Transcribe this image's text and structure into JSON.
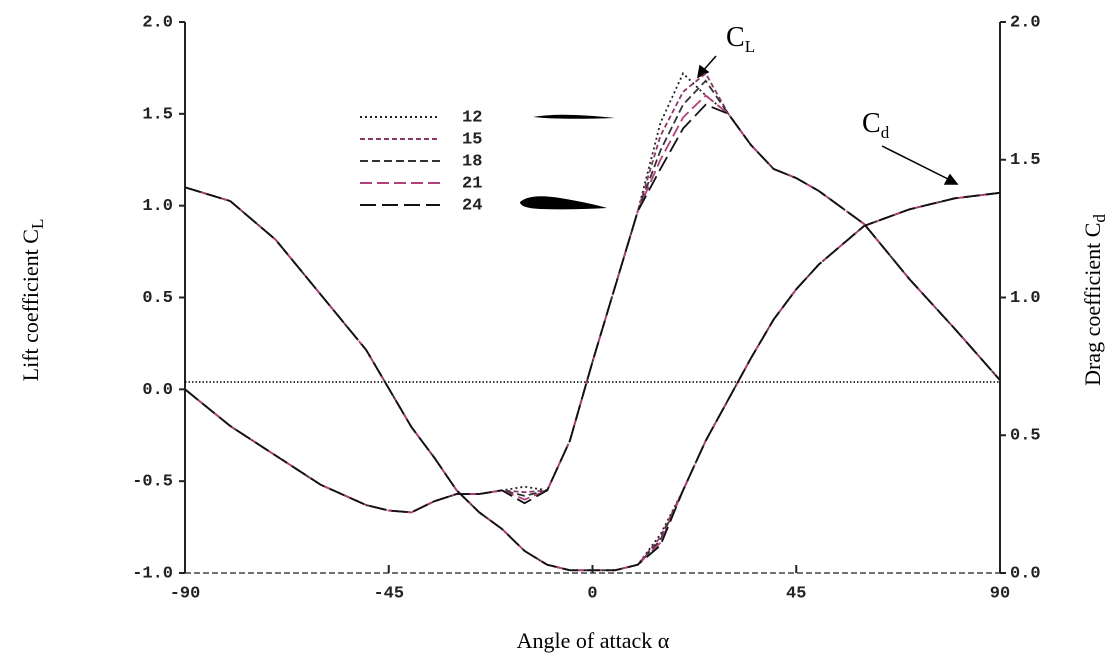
{
  "chart_data": {
    "type": "line",
    "xlabel": "Angle of attack α",
    "ylabel": "Lift coefficient C",
    "ylabel_sub": "L",
    "y2label": "Drag coefficient C",
    "y2label_sub": "d",
    "annotations": [
      {
        "text": "C",
        "sub": "L"
      },
      {
        "text": "C",
        "sub": "d"
      }
    ],
    "x": [
      -90,
      -80,
      -70,
      -60,
      -50,
      -45,
      -40,
      -35,
      -30,
      -25,
      -20,
      -15,
      -10,
      -5,
      0,
      5,
      10,
      15,
      20,
      25,
      30,
      35,
      40,
      45,
      50,
      60,
      70,
      80,
      90
    ],
    "xlim": [
      -90,
      90
    ],
    "xticks": [
      -90,
      -45,
      0,
      45,
      90
    ],
    "ylim": [
      -1,
      2
    ],
    "yticks": [
      {
        "value": -1,
        "label": "-1.0"
      },
      {
        "value": -0.5,
        "label": "-0.5"
      },
      {
        "value": 0,
        "label": "0.0"
      },
      {
        "value": 0.5,
        "label": "0.5"
      },
      {
        "value": 1,
        "label": "1.0"
      },
      {
        "value": 1.5,
        "label": "1.5"
      },
      {
        "value": 2,
        "label": "2.0"
      }
    ],
    "y2lim": [
      0,
      2
    ],
    "y2ticks": [
      {
        "value": 0,
        "label": "0.0"
      },
      {
        "value": 0.5,
        "label": "0.5"
      },
      {
        "value": 1,
        "label": "1.0"
      },
      {
        "value": 1.5,
        "label": "1.5"
      },
      {
        "value": 2,
        "label": "2.0"
      }
    ],
    "hline": 0.04,
    "series": [
      {
        "name": "12",
        "color": "#222222",
        "dash": "2,3",
        "values": [
          0,
          -0.2,
          -0.36,
          -0.52,
          -0.63,
          -0.66,
          -0.67,
          -0.61,
          -0.57,
          -0.57,
          -0.55,
          -0.53,
          -0.55,
          -0.28,
          0.15,
          0.56,
          0.97,
          1.45,
          1.72,
          1.6,
          1.5,
          1.33,
          1.2,
          1.15,
          1.08,
          0.9,
          0.6,
          0.33,
          0.05
        ],
        "cd_values": [
          1.4,
          1.35,
          1.21,
          1.01,
          0.81,
          0.67,
          0.53,
          0.42,
          0.3,
          0.22,
          0.16,
          0.08,
          0.03,
          0.01,
          0.01,
          0.01,
          0.03,
          0.14,
          0.3,
          0.48,
          0.63,
          0.78,
          0.92,
          1.03,
          1.12,
          1.26,
          1.32,
          1.36,
          1.38
        ]
      },
      {
        "name": "15",
        "color": "#8a3a6a",
        "dash": "5,3",
        "values": [
          0,
          -0.2,
          -0.36,
          -0.52,
          -0.63,
          -0.66,
          -0.67,
          -0.61,
          -0.57,
          -0.57,
          -0.55,
          -0.56,
          -0.55,
          -0.28,
          0.15,
          0.56,
          0.97,
          1.38,
          1.62,
          1.72,
          1.5,
          1.33,
          1.2,
          1.15,
          1.08,
          0.9,
          0.6,
          0.33,
          0.05
        ],
        "cd_values": [
          1.4,
          1.35,
          1.21,
          1.01,
          0.81,
          0.67,
          0.53,
          0.42,
          0.3,
          0.22,
          0.16,
          0.08,
          0.03,
          0.01,
          0.01,
          0.01,
          0.03,
          0.13,
          0.3,
          0.48,
          0.63,
          0.78,
          0.92,
          1.03,
          1.12,
          1.26,
          1.32,
          1.36,
          1.38
        ]
      },
      {
        "name": "18",
        "color": "#333333",
        "dash": "8,4",
        "values": [
          0,
          -0.2,
          -0.36,
          -0.52,
          -0.63,
          -0.66,
          -0.67,
          -0.61,
          -0.57,
          -0.57,
          -0.55,
          -0.58,
          -0.55,
          -0.28,
          0.15,
          0.56,
          0.97,
          1.3,
          1.55,
          1.68,
          1.5,
          1.33,
          1.2,
          1.15,
          1.08,
          0.9,
          0.6,
          0.33,
          0.05
        ],
        "cd_values": [
          1.4,
          1.35,
          1.21,
          1.01,
          0.81,
          0.67,
          0.53,
          0.42,
          0.3,
          0.22,
          0.16,
          0.08,
          0.03,
          0.01,
          0.01,
          0.01,
          0.03,
          0.12,
          0.3,
          0.48,
          0.63,
          0.78,
          0.92,
          1.03,
          1.12,
          1.26,
          1.32,
          1.36,
          1.38
        ]
      },
      {
        "name": "21",
        "color": "#b0407a",
        "dash": "12,5",
        "values": [
          0,
          -0.2,
          -0.36,
          -0.52,
          -0.63,
          -0.66,
          -0.67,
          -0.61,
          -0.57,
          -0.57,
          -0.55,
          -0.6,
          -0.55,
          -0.28,
          0.15,
          0.56,
          0.97,
          1.25,
          1.48,
          1.6,
          1.5,
          1.33,
          1.2,
          1.15,
          1.08,
          0.9,
          0.6,
          0.33,
          0.05
        ],
        "cd_values": [
          1.4,
          1.35,
          1.21,
          1.01,
          0.81,
          0.67,
          0.53,
          0.42,
          0.3,
          0.22,
          0.16,
          0.08,
          0.03,
          0.01,
          0.01,
          0.01,
          0.03,
          0.11,
          0.3,
          0.48,
          0.63,
          0.78,
          0.92,
          1.03,
          1.12,
          1.26,
          1.32,
          1.36,
          1.38
        ]
      },
      {
        "name": "24",
        "color": "#111111",
        "dash": "16,6",
        "values": [
          0,
          -0.2,
          -0.36,
          -0.52,
          -0.63,
          -0.66,
          -0.67,
          -0.61,
          -0.57,
          -0.57,
          -0.55,
          -0.62,
          -0.55,
          -0.28,
          0.15,
          0.56,
          0.97,
          1.2,
          1.42,
          1.55,
          1.5,
          1.33,
          1.2,
          1.15,
          1.08,
          0.9,
          0.6,
          0.33,
          0.05
        ],
        "cd_values": [
          1.4,
          1.35,
          1.21,
          1.01,
          0.81,
          0.67,
          0.53,
          0.42,
          0.3,
          0.22,
          0.16,
          0.08,
          0.03,
          0.01,
          0.01,
          0.01,
          0.03,
          0.1,
          0.3,
          0.48,
          0.63,
          0.78,
          0.92,
          1.03,
          1.12,
          1.26,
          1.32,
          1.36,
          1.38
        ]
      }
    ]
  }
}
